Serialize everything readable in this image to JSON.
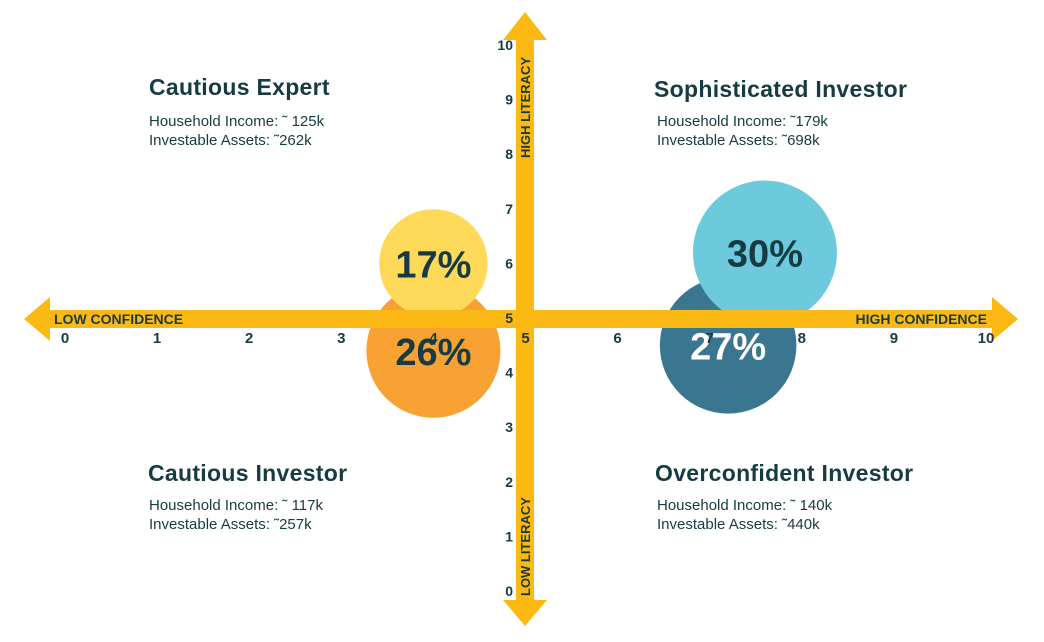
{
  "chart_data": {
    "type": "scatter",
    "xlabel_low": "LOW CONFIDENCE",
    "xlabel_high": "HIGH CONFIDENCE",
    "ylabel_low": "LOW LITERACY",
    "ylabel_high": "HIGH LITERACY",
    "x_ticks": [
      "0",
      "1",
      "2",
      "3",
      "4",
      "5",
      "6",
      "7",
      "8",
      "9",
      "10"
    ],
    "y_ticks": [
      "0",
      "1",
      "2",
      "3",
      "4",
      "5",
      "6",
      "7",
      "8",
      "9",
      "10"
    ],
    "xlim": [
      0,
      10
    ],
    "ylim": [
      0,
      10
    ],
    "bubbles": [
      {
        "label": "17%",
        "value": 17,
        "x": 4.0,
        "y": 6.0,
        "color": "#ffd95a",
        "text_color": "#173b42"
      },
      {
        "label": "26%",
        "value": 26,
        "x": 4.0,
        "y": 4.4,
        "color": "#f8a233",
        "text_color": "#173b42"
      },
      {
        "label": "27%",
        "value": 27,
        "x": 7.2,
        "y": 4.5,
        "color": "#3b7690",
        "text_color": "#ffffff"
      },
      {
        "label": "30%",
        "value": 30,
        "x": 7.6,
        "y": 6.2,
        "color": "#6ccadc",
        "text_color": "#173b42"
      }
    ],
    "axis_color": "#fdb913"
  },
  "quadrants": {
    "top_left": {
      "title": "Cautious Expert",
      "income": "Household Income: ˜ 125k",
      "assets": "Investable Assets: ˜262k"
    },
    "top_right": {
      "title": "Sophisticated Investor",
      "income": "Household Income: ˜179k",
      "assets": "Investable Assets: ˜698k"
    },
    "bottom_left": {
      "title": "Cautious Investor",
      "income": "Household Income: ˜ 117k",
      "assets": "Investable Assets: ˜257k"
    },
    "bottom_right": {
      "title": "Overconfident Investor",
      "income": "Household Income: ˜ 140k",
      "assets": "Investable Assets: ˜440k"
    }
  }
}
